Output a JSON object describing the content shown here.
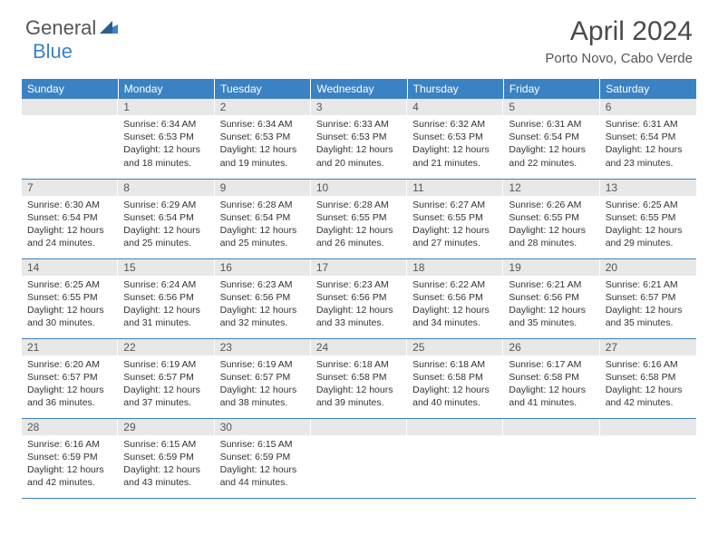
{
  "brand": {
    "part1": "General",
    "part2": "Blue"
  },
  "title": "April 2024",
  "location": "Porto Novo, Cabo Verde",
  "colors": {
    "header_bg": "#3b82c4",
    "daynum_bg": "#e8e8e8",
    "text": "#333333",
    "border": "#3b82c4"
  },
  "weekdays": [
    "Sunday",
    "Monday",
    "Tuesday",
    "Wednesday",
    "Thursday",
    "Friday",
    "Saturday"
  ],
  "start_weekday": 1,
  "days": [
    {
      "n": 1,
      "sunrise": "6:34 AM",
      "sunset": "6:53 PM",
      "daylight": "12 hours and 18 minutes."
    },
    {
      "n": 2,
      "sunrise": "6:34 AM",
      "sunset": "6:53 PM",
      "daylight": "12 hours and 19 minutes."
    },
    {
      "n": 3,
      "sunrise": "6:33 AM",
      "sunset": "6:53 PM",
      "daylight": "12 hours and 20 minutes."
    },
    {
      "n": 4,
      "sunrise": "6:32 AM",
      "sunset": "6:53 PM",
      "daylight": "12 hours and 21 minutes."
    },
    {
      "n": 5,
      "sunrise": "6:31 AM",
      "sunset": "6:54 PM",
      "daylight": "12 hours and 22 minutes."
    },
    {
      "n": 6,
      "sunrise": "6:31 AM",
      "sunset": "6:54 PM",
      "daylight": "12 hours and 23 minutes."
    },
    {
      "n": 7,
      "sunrise": "6:30 AM",
      "sunset": "6:54 PM",
      "daylight": "12 hours and 24 minutes."
    },
    {
      "n": 8,
      "sunrise": "6:29 AM",
      "sunset": "6:54 PM",
      "daylight": "12 hours and 25 minutes."
    },
    {
      "n": 9,
      "sunrise": "6:28 AM",
      "sunset": "6:54 PM",
      "daylight": "12 hours and 25 minutes."
    },
    {
      "n": 10,
      "sunrise": "6:28 AM",
      "sunset": "6:55 PM",
      "daylight": "12 hours and 26 minutes."
    },
    {
      "n": 11,
      "sunrise": "6:27 AM",
      "sunset": "6:55 PM",
      "daylight": "12 hours and 27 minutes."
    },
    {
      "n": 12,
      "sunrise": "6:26 AM",
      "sunset": "6:55 PM",
      "daylight": "12 hours and 28 minutes."
    },
    {
      "n": 13,
      "sunrise": "6:25 AM",
      "sunset": "6:55 PM",
      "daylight": "12 hours and 29 minutes."
    },
    {
      "n": 14,
      "sunrise": "6:25 AM",
      "sunset": "6:55 PM",
      "daylight": "12 hours and 30 minutes."
    },
    {
      "n": 15,
      "sunrise": "6:24 AM",
      "sunset": "6:56 PM",
      "daylight": "12 hours and 31 minutes."
    },
    {
      "n": 16,
      "sunrise": "6:23 AM",
      "sunset": "6:56 PM",
      "daylight": "12 hours and 32 minutes."
    },
    {
      "n": 17,
      "sunrise": "6:23 AM",
      "sunset": "6:56 PM",
      "daylight": "12 hours and 33 minutes."
    },
    {
      "n": 18,
      "sunrise": "6:22 AM",
      "sunset": "6:56 PM",
      "daylight": "12 hours and 34 minutes."
    },
    {
      "n": 19,
      "sunrise": "6:21 AM",
      "sunset": "6:56 PM",
      "daylight": "12 hours and 35 minutes."
    },
    {
      "n": 20,
      "sunrise": "6:21 AM",
      "sunset": "6:57 PM",
      "daylight": "12 hours and 35 minutes."
    },
    {
      "n": 21,
      "sunrise": "6:20 AM",
      "sunset": "6:57 PM",
      "daylight": "12 hours and 36 minutes."
    },
    {
      "n": 22,
      "sunrise": "6:19 AM",
      "sunset": "6:57 PM",
      "daylight": "12 hours and 37 minutes."
    },
    {
      "n": 23,
      "sunrise": "6:19 AM",
      "sunset": "6:57 PM",
      "daylight": "12 hours and 38 minutes."
    },
    {
      "n": 24,
      "sunrise": "6:18 AM",
      "sunset": "6:58 PM",
      "daylight": "12 hours and 39 minutes."
    },
    {
      "n": 25,
      "sunrise": "6:18 AM",
      "sunset": "6:58 PM",
      "daylight": "12 hours and 40 minutes."
    },
    {
      "n": 26,
      "sunrise": "6:17 AM",
      "sunset": "6:58 PM",
      "daylight": "12 hours and 41 minutes."
    },
    {
      "n": 27,
      "sunrise": "6:16 AM",
      "sunset": "6:58 PM",
      "daylight": "12 hours and 42 minutes."
    },
    {
      "n": 28,
      "sunrise": "6:16 AM",
      "sunset": "6:59 PM",
      "daylight": "12 hours and 42 minutes."
    },
    {
      "n": 29,
      "sunrise": "6:15 AM",
      "sunset": "6:59 PM",
      "daylight": "12 hours and 43 minutes."
    },
    {
      "n": 30,
      "sunrise": "6:15 AM",
      "sunset": "6:59 PM",
      "daylight": "12 hours and 44 minutes."
    }
  ],
  "labels": {
    "sunrise": "Sunrise:",
    "sunset": "Sunset:",
    "daylight": "Daylight:"
  }
}
